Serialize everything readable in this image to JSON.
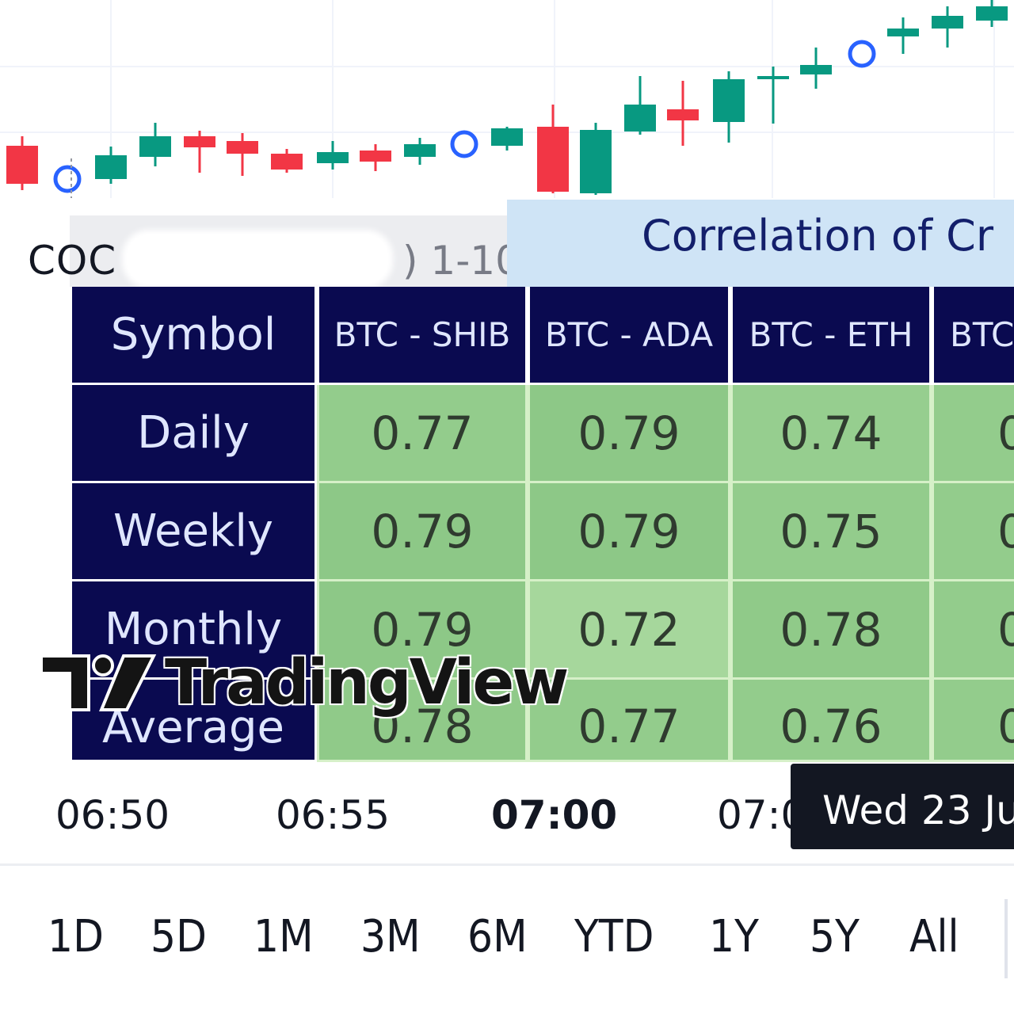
{
  "legend": {
    "name": "COC",
    "params": ") 1-10"
  },
  "table": {
    "title": "Correlation of Cr",
    "header_label": "Symbol",
    "pairs": [
      "BTC - SHIB",
      "BTC - ADA",
      "BTC - ETH",
      "BTC"
    ],
    "rows": [
      {
        "label": "Daily",
        "values": [
          "0.77",
          "0.79",
          "0.74",
          "0"
        ]
      },
      {
        "label": "Weekly",
        "values": [
          "0.79",
          "0.79",
          "0.75",
          "0"
        ]
      },
      {
        "label": "Monthly",
        "values": [
          "0.79",
          "0.72",
          "0.78",
          "0"
        ]
      },
      {
        "label": "Average",
        "values": [
          "0.78",
          "0.77",
          "0.76",
          "0"
        ]
      }
    ],
    "colors": {
      "header_bg": "#0a0a50",
      "cells": [
        [
          "#93cc8c",
          "#8dc887",
          "#96ce8f",
          "#93cc8c"
        ],
        [
          "#8dc887",
          "#8dc887",
          "#93cc8c",
          "#93cc8c"
        ],
        [
          "#8dc887",
          "#a6d79c",
          "#90ca89",
          "#93cc8c"
        ],
        [
          "#90ca89",
          "#93cc8c",
          "#93cc8c",
          "#93cc8c"
        ]
      ]
    }
  },
  "watermark": {
    "text": "TradingView",
    "logo": "tradingview-logo"
  },
  "time_axis": {
    "labels": [
      "06:50",
      "06:55",
      "07:00",
      "07:0"
    ],
    "crosshair_label": "Wed 23 Ju"
  },
  "ranges": [
    "1D",
    "5D",
    "1M",
    "3M",
    "6M",
    "YTD",
    "1Y",
    "5Y",
    "All"
  ],
  "colors": {
    "up": "#089981",
    "down": "#f23645",
    "marker": "#2962ff"
  }
}
